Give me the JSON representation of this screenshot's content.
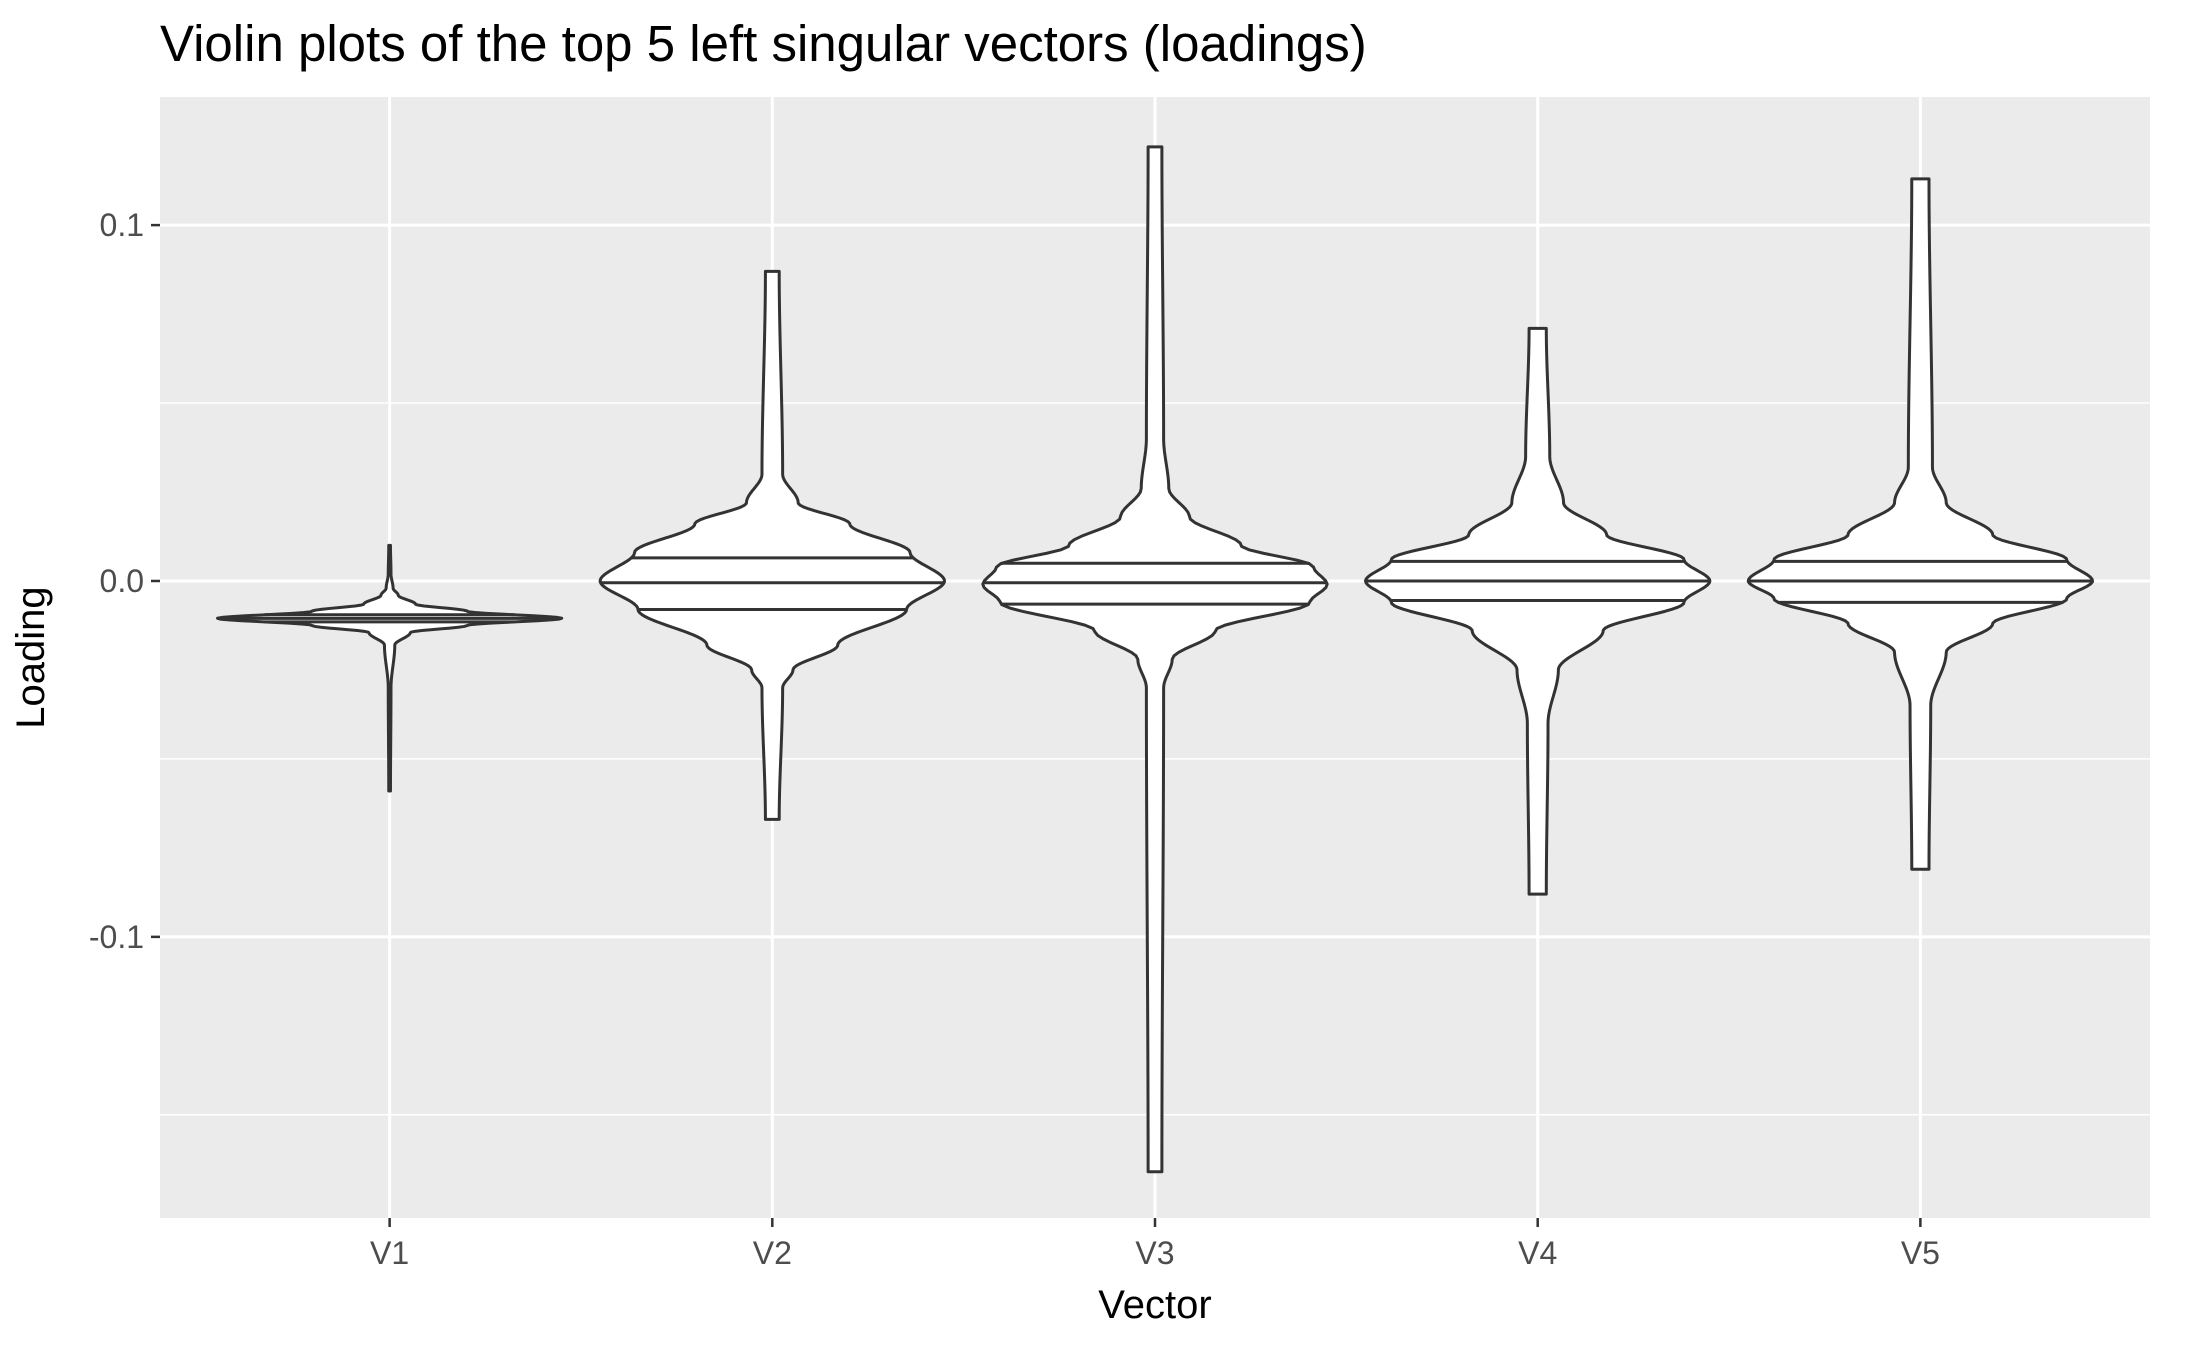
{
  "chart_data": {
    "type": "violin",
    "title": "Violin plots of the top 5 left singular vectors (loadings)",
    "xlabel": "Vector",
    "ylabel": "Loading",
    "ylim": [
      -0.179,
      0.136
    ],
    "y_ticks": [
      0.1,
      0.0,
      -0.1
    ],
    "y_tick_labels": [
      "0.1",
      "0.0",
      "-0.1"
    ],
    "grid": true,
    "colors": {
      "panel": "#EBEBEB",
      "grid": "#FFFFFF",
      "outline": "#333333",
      "fill": "#FFFFFF"
    },
    "categories": [
      "V1",
      "V2",
      "V3",
      "V4",
      "V5"
    ],
    "series": [
      {
        "category": "V1",
        "min": -0.059,
        "max": 0.01,
        "q1": -0.0115,
        "median": -0.0105,
        "q3": -0.0095,
        "density": [
          [
            -0.059,
            0.005
          ],
          [
            -0.03,
            0.008
          ],
          [
            -0.018,
            0.03
          ],
          [
            -0.0145,
            0.12
          ],
          [
            -0.0125,
            0.45
          ],
          [
            -0.0105,
            1.0
          ],
          [
            -0.0085,
            0.45
          ],
          [
            -0.0065,
            0.15
          ],
          [
            -0.004,
            0.05
          ],
          [
            -0.002,
            0.02
          ],
          [
            0.002,
            0.008
          ],
          [
            0.01,
            0.005
          ]
        ]
      },
      {
        "category": "V2",
        "min": -0.067,
        "max": 0.087,
        "q1": -0.008,
        "median": -0.0005,
        "q3": 0.0065,
        "density": [
          [
            -0.067,
            0.04
          ],
          [
            -0.03,
            0.06
          ],
          [
            -0.025,
            0.12
          ],
          [
            -0.018,
            0.38
          ],
          [
            -0.008,
            0.78
          ],
          [
            0.0,
            1.0
          ],
          [
            0.008,
            0.8
          ],
          [
            0.016,
            0.45
          ],
          [
            0.022,
            0.15
          ],
          [
            0.03,
            0.06
          ],
          [
            0.087,
            0.04
          ]
        ]
      },
      {
        "category": "V3",
        "min": -0.166,
        "max": 0.122,
        "q1": -0.0065,
        "median": -0.0005,
        "q3": 0.005,
        "density": [
          [
            -0.166,
            0.04
          ],
          [
            -0.03,
            0.05
          ],
          [
            -0.022,
            0.1
          ],
          [
            -0.014,
            0.35
          ],
          [
            -0.006,
            0.9
          ],
          [
            -0.001,
            1.0
          ],
          [
            0.004,
            0.92
          ],
          [
            0.01,
            0.5
          ],
          [
            0.018,
            0.2
          ],
          [
            0.026,
            0.08
          ],
          [
            0.04,
            0.05
          ],
          [
            0.122,
            0.04
          ]
        ]
      },
      {
        "category": "V4",
        "min": -0.088,
        "max": 0.071,
        "q1": -0.0055,
        "median": 0.0,
        "q3": 0.0055,
        "density": [
          [
            -0.088,
            0.05
          ],
          [
            -0.04,
            0.06
          ],
          [
            -0.025,
            0.12
          ],
          [
            -0.014,
            0.38
          ],
          [
            -0.006,
            0.85
          ],
          [
            0.0,
            1.0
          ],
          [
            0.006,
            0.85
          ],
          [
            0.013,
            0.4
          ],
          [
            0.022,
            0.15
          ],
          [
            0.035,
            0.07
          ],
          [
            0.071,
            0.05
          ]
        ]
      },
      {
        "category": "V5",
        "min": -0.081,
        "max": 0.113,
        "q1": -0.006,
        "median": 0.0,
        "q3": 0.0055,
        "density": [
          [
            -0.081,
            0.05
          ],
          [
            -0.035,
            0.06
          ],
          [
            -0.02,
            0.15
          ],
          [
            -0.012,
            0.42
          ],
          [
            -0.005,
            0.85
          ],
          [
            0.0,
            1.0
          ],
          [
            0.006,
            0.85
          ],
          [
            0.013,
            0.42
          ],
          [
            0.022,
            0.15
          ],
          [
            0.032,
            0.07
          ],
          [
            0.113,
            0.05
          ]
        ]
      }
    ]
  }
}
